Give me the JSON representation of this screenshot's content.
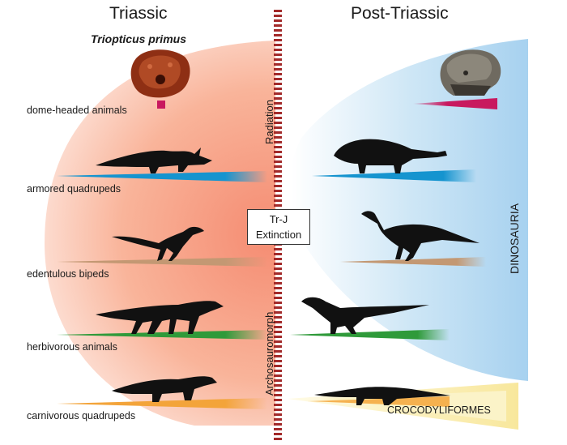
{
  "titles": {
    "left": "Triassic",
    "right": "Post-Triassic"
  },
  "species_name": "Triopticus primus",
  "row_labels": [
    "dome-headed animals",
    "armored quadrupeds",
    "edentulous bipeds",
    "herbivorous animals",
    "carnivorous quadrupeds"
  ],
  "divider": {
    "top_label": "Radiation",
    "bottom_label": "Archosauromorph",
    "box_line1": "Tr-J",
    "box_line2": "Extinction"
  },
  "side_label": "DINOSAURIA",
  "croc_label": "CROCODYLIFORMES",
  "colors": {
    "triassic_region": "#f7a98e",
    "post_region": "#a8d3ee",
    "divider": "#a22a2a",
    "dome": "#c8195f",
    "armored": "#1594cf",
    "edentulous": "#b5835a",
    "herbivorous": "#2f9a3a",
    "carnivorous": "#f3a43a",
    "croc_region": "#fbf0b4",
    "silhouette": "#111111"
  }
}
